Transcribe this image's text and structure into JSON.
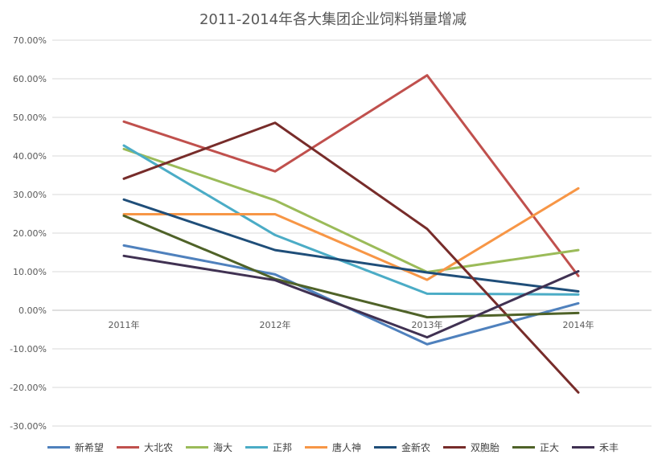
{
  "chart_data": {
    "type": "line",
    "title": "2011-2014年各大集团企业饲料销量增减",
    "categories": [
      "2011年",
      "2012年",
      "2013年",
      "2014年"
    ],
    "y_ticks": [
      "70.00%",
      "60.00%",
      "50.00%",
      "40.00%",
      "30.00%",
      "20.00%",
      "10.00%",
      "0.00%",
      "-10.00%",
      "-20.00%",
      "-30.00%"
    ],
    "ylim": [
      -30,
      70
    ],
    "y_unit": "%",
    "grid": true,
    "legend_position": "bottom",
    "series": [
      {
        "name": "新希望",
        "color": "#4f81bd",
        "values": [
          16.8,
          9.3,
          -8.8,
          1.8
        ]
      },
      {
        "name": "大北农",
        "color": "#c0504d",
        "values": [
          48.9,
          36.0,
          60.9,
          8.9
        ]
      },
      {
        "name": "海大",
        "color": "#9bbb59",
        "values": [
          41.8,
          28.5,
          9.9,
          15.6
        ]
      },
      {
        "name": "正邦",
        "color": "#4bacc6",
        "values": [
          42.7,
          19.5,
          4.3,
          4.1
        ]
      },
      {
        "name": "唐人神",
        "color": "#f79646",
        "values": [
          24.9,
          24.9,
          7.9,
          31.6
        ]
      },
      {
        "name": "金新农",
        "color": "#1f4e79",
        "values": [
          28.7,
          15.6,
          9.8,
          4.9
        ]
      },
      {
        "name": "双胞胎",
        "color": "#772c2a",
        "values": [
          34.1,
          48.6,
          21.1,
          -21.3
        ]
      },
      {
        "name": "正大",
        "color": "#4f6228",
        "values": [
          24.5,
          8.1,
          -1.8,
          -0.7
        ]
      },
      {
        "name": "禾丰",
        "color": "#403152",
        "values": [
          14.1,
          7.8,
          -7.0,
          10.1
        ]
      }
    ]
  }
}
